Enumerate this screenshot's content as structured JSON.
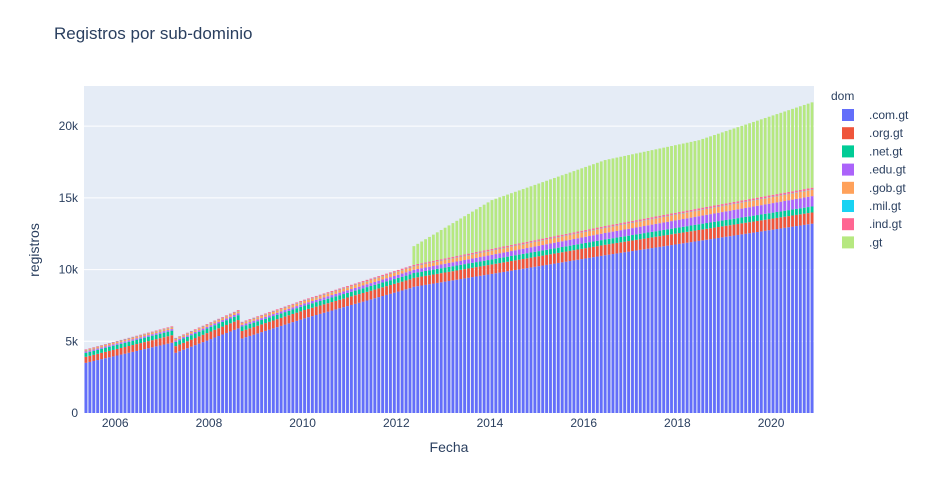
{
  "chart_data": {
    "type": "bar",
    "barmode": "stack",
    "title": "Registros por sub-dominio",
    "xlabel": "Fecha",
    "ylabel": "registros",
    "legend_title": "dom",
    "legend_position": "right",
    "grid": true,
    "xlim": [
      "2005-05-01",
      "2020-11-01"
    ],
    "ylim": [
      0,
      22800
    ],
    "x_ticks": [
      "2006",
      "2008",
      "2010",
      "2012",
      "2014",
      "2016",
      "2018",
      "2020"
    ],
    "y_ticks": [
      {
        "value": 0,
        "label": "0"
      },
      {
        "value": 5000,
        "label": "5k"
      },
      {
        "value": 10000,
        "label": "10k"
      },
      {
        "value": 15000,
        "label": "15k"
      },
      {
        "value": 20000,
        "label": "20k"
      }
    ],
    "colors": [
      "#636efa",
      "#EF553B",
      "#00cc96",
      "#ab63fa",
      "#FFA15A",
      "#19d3f3",
      "#FF6692",
      "#B6E880"
    ],
    "series_names": [
      ".com.gt",
      ".org.gt",
      ".net.gt",
      ".edu.gt",
      ".gob.gt",
      ".mil.gt",
      ".ind.gt",
      ".gt"
    ],
    "x_start": "2005-05",
    "x_step": "1 month",
    "anchors": {
      ".com.gt": [
        [
          "2005-05",
          3500
        ],
        [
          "2007-03",
          4900
        ],
        [
          "2007-04",
          4200
        ],
        [
          "2008-08",
          5900
        ],
        [
          "2008-09",
          5200
        ],
        [
          "2010-01",
          6600
        ],
        [
          "2012-04",
          8700
        ],
        [
          "2012-05",
          8800
        ],
        [
          "2014-01",
          9700
        ],
        [
          "2016-06",
          11000
        ],
        [
          "2018-06",
          12000
        ],
        [
          "2020-11",
          13200
        ]
      ],
      ".org.gt": [
        [
          "2005-05",
          420
        ],
        [
          "2007-03",
          520
        ],
        [
          "2007-04",
          460
        ],
        [
          "2008-08",
          580
        ],
        [
          "2008-09",
          520
        ],
        [
          "2010-01",
          580
        ],
        [
          "2012-04",
          620
        ],
        [
          "2012-05",
          620
        ],
        [
          "2014-01",
          660
        ],
        [
          "2016-06",
          730
        ],
        [
          "2018-06",
          760
        ],
        [
          "2020-11",
          780
        ]
      ],
      ".net.gt": [
        [
          "2005-05",
          280
        ],
        [
          "2007-03",
          320
        ],
        [
          "2007-04",
          300
        ],
        [
          "2008-08",
          340
        ],
        [
          "2008-09",
          310
        ],
        [
          "2010-01",
          310
        ],
        [
          "2012-04",
          340
        ],
        [
          "2012-05",
          340
        ],
        [
          "2014-01",
          350
        ],
        [
          "2016-06",
          370
        ],
        [
          "2018-06",
          400
        ],
        [
          "2020-11",
          420
        ]
      ],
      ".edu.gt": [
        [
          "2005-05",
          90
        ],
        [
          "2007-03",
          110
        ],
        [
          "2007-04",
          100
        ],
        [
          "2008-08",
          130
        ],
        [
          "2008-09",
          120
        ],
        [
          "2010-01",
          150
        ],
        [
          "2012-04",
          230
        ],
        [
          "2012-05",
          230
        ],
        [
          "2014-01",
          320
        ],
        [
          "2016-06",
          450
        ],
        [
          "2018-06",
          560
        ],
        [
          "2020-11",
          720
        ]
      ],
      ".gob.gt": [
        [
          "2005-05",
          100
        ],
        [
          "2007-03",
          130
        ],
        [
          "2007-04",
          120
        ],
        [
          "2008-08",
          150
        ],
        [
          "2008-09",
          140
        ],
        [
          "2010-01",
          180
        ],
        [
          "2012-04",
          240
        ],
        [
          "2012-05",
          240
        ],
        [
          "2014-01",
          300
        ],
        [
          "2016-06",
          360
        ],
        [
          "2018-06",
          410
        ],
        [
          "2020-11",
          440
        ]
      ],
      ".mil.gt": [
        [
          "2005-05",
          10
        ],
        [
          "2020-11",
          20
        ]
      ],
      ".ind.gt": [
        [
          "2005-05",
          40
        ],
        [
          "2007-03",
          50
        ],
        [
          "2007-04",
          45
        ],
        [
          "2008-08",
          60
        ],
        [
          "2008-09",
          55
        ],
        [
          "2010-01",
          70
        ],
        [
          "2012-04",
          90
        ],
        [
          "2012-05",
          90
        ],
        [
          "2014-01",
          100
        ],
        [
          "2016-06",
          110
        ],
        [
          "2018-06",
          120
        ],
        [
          "2020-11",
          130
        ]
      ],
      ".gt": [
        [
          "2005-05",
          0
        ],
        [
          "2012-04",
          0
        ],
        [
          "2012-05",
          1300
        ],
        [
          "2014-01",
          3400
        ],
        [
          "2016-06",
          4600
        ],
        [
          "2018-06",
          4750
        ],
        [
          "2020-11",
          5950
        ]
      ]
    }
  }
}
